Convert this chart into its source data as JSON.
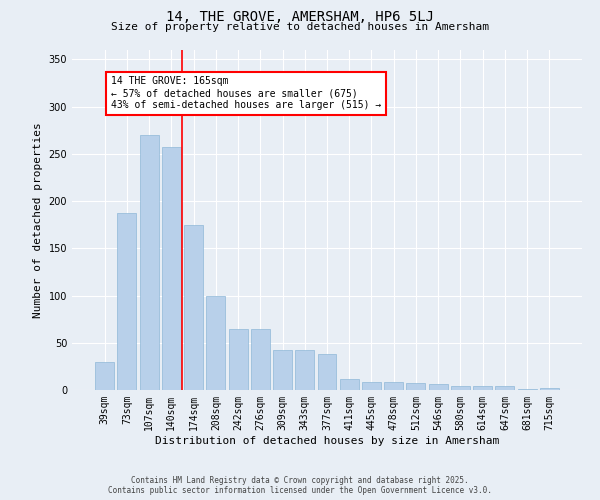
{
  "title": "14, THE GROVE, AMERSHAM, HP6 5LJ",
  "subtitle": "Size of property relative to detached houses in Amersham",
  "xlabel": "Distribution of detached houses by size in Amersham",
  "ylabel": "Number of detached properties",
  "bar_color": "#b8d0ea",
  "bar_edge_color": "#8fb8d8",
  "background_color": "#e8eef5",
  "grid_color": "#ffffff",
  "annotation_line_color": "red",
  "annotation_text_line1": "14 THE GROVE: 165sqm",
  "annotation_text_line2": "← 57% of detached houses are smaller (675)",
  "annotation_text_line3": "43% of semi-detached houses are larger (515) →",
  "categories": [
    "39sqm",
    "73sqm",
    "107sqm",
    "140sqm",
    "174sqm",
    "208sqm",
    "242sqm",
    "276sqm",
    "309sqm",
    "343sqm",
    "377sqm",
    "411sqm",
    "445sqm",
    "478sqm",
    "512sqm",
    "546sqm",
    "580sqm",
    "614sqm",
    "647sqm",
    "681sqm",
    "715sqm"
  ],
  "values": [
    30,
    187,
    270,
    257,
    175,
    100,
    65,
    65,
    42,
    42,
    38,
    12,
    9,
    8,
    7,
    6,
    4,
    4,
    4,
    1,
    2
  ],
  "ylim": [
    0,
    360
  ],
  "yticks": [
    0,
    50,
    100,
    150,
    200,
    250,
    300,
    350
  ],
  "footer_line1": "Contains HM Land Registry data © Crown copyright and database right 2025.",
  "footer_line2": "Contains public sector information licensed under the Open Government Licence v3.0.",
  "title_fontsize": 10,
  "subtitle_fontsize": 8,
  "ylabel_fontsize": 8,
  "xlabel_fontsize": 8,
  "tick_fontsize": 7,
  "footer_fontsize": 5.5
}
